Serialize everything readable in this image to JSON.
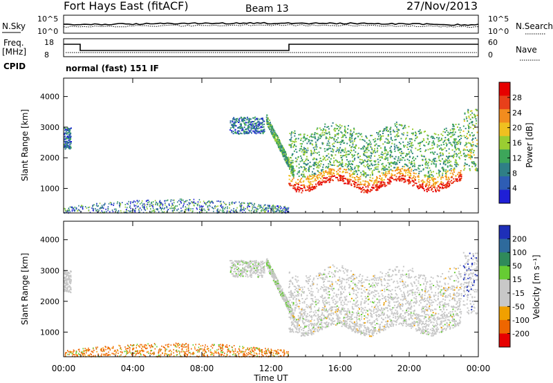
{
  "header": {
    "station": "Fort Hays East (fitACF)",
    "beam": "Beam 13",
    "date": "27/Nov/2013"
  },
  "noise_panel": {
    "left_label": "N.Sky",
    "right_label": "N.Search",
    "yticks": [
      "10^5",
      "10^0"
    ],
    "yticks_right": [
      "10^5",
      "10^0"
    ]
  },
  "freq_panel": {
    "left_label_line1": "Freq.",
    "left_label_line2": "[MHz]",
    "right_label": "Nave",
    "yticks": [
      "18",
      "8"
    ],
    "yticks_right": [
      "60",
      "0"
    ]
  },
  "cpid": {
    "label": "CPID",
    "value": "normal (fast) 151 IF"
  },
  "chart_data": [
    {
      "type": "heatmap",
      "name": "power",
      "ylabel": "Slant Range [km]",
      "ylim": [
        200,
        4600
      ],
      "yticks": [
        1000,
        2000,
        3000,
        4000
      ],
      "xlim": [
        0,
        24
      ],
      "colorbar": {
        "label": "Power [dB]",
        "ticks": [
          4,
          8,
          12,
          16,
          20,
          24,
          28
        ],
        "range": [
          0,
          32
        ],
        "colors": [
          "#1f1fd6",
          "#2e5db4",
          "#2f7f86",
          "#3da65a",
          "#9acd32",
          "#f0c020",
          "#f28c1e",
          "#e8401a",
          "#e60000"
        ]
      }
    },
    {
      "type": "heatmap",
      "name": "velocity",
      "ylabel": "Slant Range [km]",
      "ylim": [
        200,
        4600
      ],
      "yticks": [
        1000,
        2000,
        3000,
        4000
      ],
      "xlim": [
        0,
        24
      ],
      "colorbar": {
        "label": "Velocity [m s⁻¹]",
        "ticks": [
          "200",
          "100",
          "50",
          "15",
          "-15",
          "-50",
          "-100",
          "-200"
        ],
        "colors": [
          "#1e2fb8",
          "#2e6a9c",
          "#2f8a5a",
          "#66cc33",
          "#c8c8c8",
          "#c8c8c8",
          "#f0a000",
          "#ee6600",
          "#e60000"
        ]
      }
    }
  ],
  "time_axis": {
    "label": "Time UT",
    "ticks": [
      "00:00",
      "04:00",
      "08:00",
      "12:00",
      "16:00",
      "20:00",
      "00:00"
    ]
  }
}
